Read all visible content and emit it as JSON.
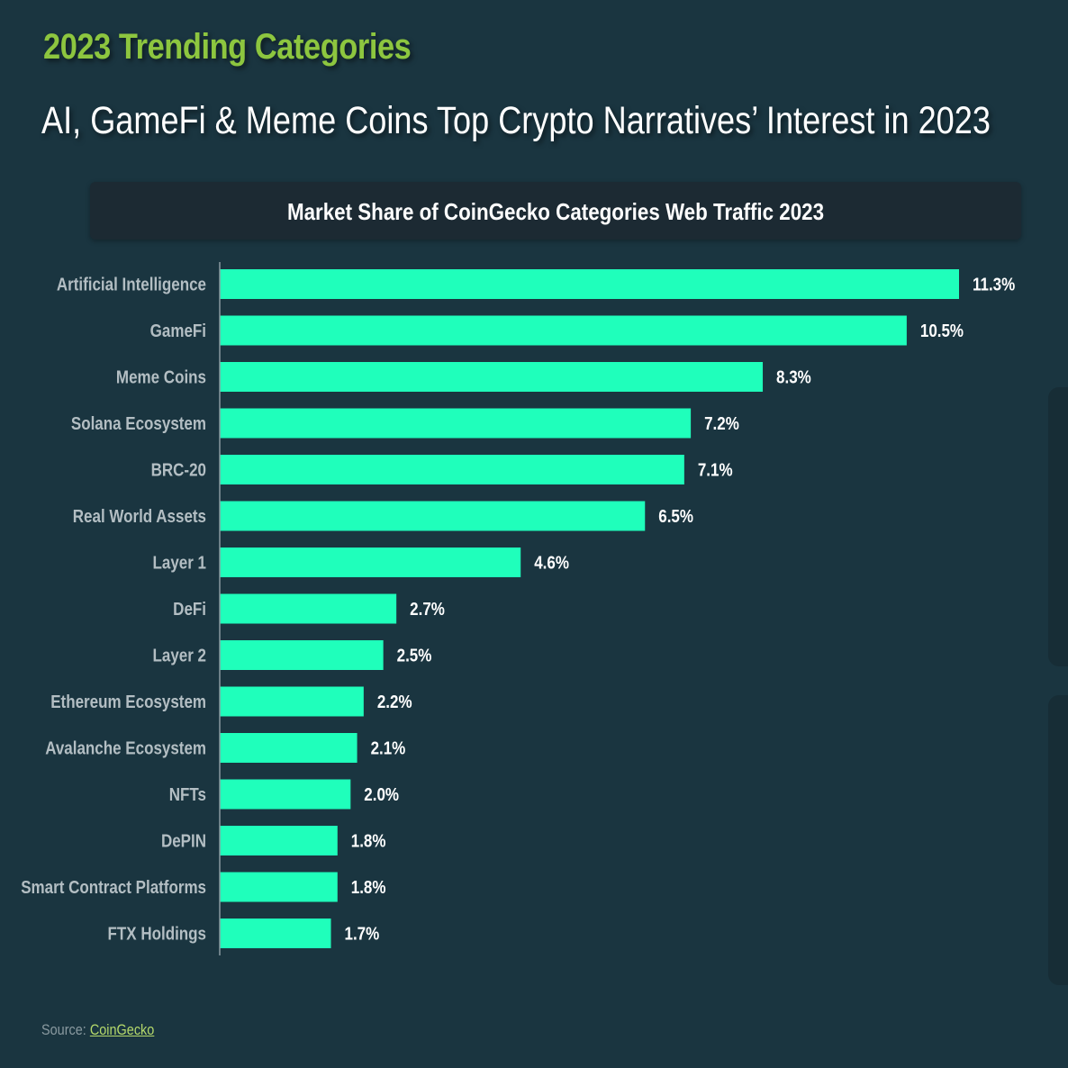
{
  "header": {
    "kicker": "2023 Trending Categories",
    "headline": "AI, GameFi & Meme Coins Top Crypto Narratives’ Interest in 2023"
  },
  "footer": {
    "source_label": "Source:",
    "source_link": "CoinGecko"
  },
  "colors": {
    "background": "#1a3540",
    "bar": "#1fffbb",
    "kicker": "#8dc63f",
    "label": "#b3bec3",
    "value": "#ffffff"
  },
  "chart_data": {
    "type": "bar",
    "orientation": "horizontal",
    "title": "Market Share of CoinGecko Categories Web Traffic 2023",
    "categories": [
      "Artificial Intelligence",
      "GameFi",
      "Meme Coins",
      "Solana Ecosystem",
      "BRC-20",
      "Real World Assets",
      "Layer 1",
      "DeFi",
      "Layer 2",
      "Ethereum Ecosystem",
      "Avalanche Ecosystem",
      "NFTs",
      "DePIN",
      "Smart Contract Platforms",
      "FTX Holdings"
    ],
    "values": [
      11.3,
      10.5,
      8.3,
      7.2,
      7.1,
      6.5,
      4.6,
      2.7,
      2.5,
      2.2,
      2.1,
      2.0,
      1.8,
      1.8,
      1.7
    ],
    "value_labels": [
      "11.3%",
      "10.5%",
      "8.3%",
      "7.2%",
      "7.1%",
      "6.5%",
      "4.6%",
      "2.7%",
      "2.5%",
      "2.2%",
      "2.1%",
      "2.0%",
      "1.8%",
      "1.8%",
      "1.7%"
    ],
    "unit": "%",
    "xlim": [
      0,
      11.3
    ],
    "grid": false
  }
}
